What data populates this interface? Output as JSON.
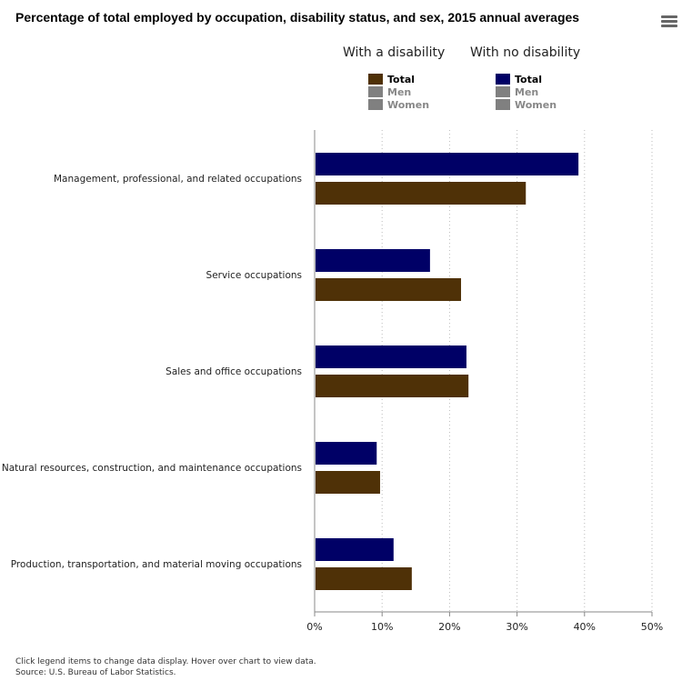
{
  "chart_data": {
    "type": "bar",
    "orientation": "horizontal",
    "title": "Percentage of total employed by occupation, disability status, and sex, 2015 annual averages",
    "categories": [
      "Management, professional, and related occupations",
      "Service occupations",
      "Sales and office occupations",
      "Natural resources, construction, and maintenance occupations",
      "Production, transportation, and material moving occupations"
    ],
    "series": [
      {
        "name": "With no disability - Total",
        "color": "#000066",
        "values": [
          39.1,
          17.1,
          22.5,
          9.2,
          11.7
        ]
      },
      {
        "name": "With a disability - Total",
        "color": "#4f3107",
        "values": [
          31.3,
          21.7,
          22.8,
          9.7,
          14.4
        ]
      }
    ],
    "xlim": [
      0,
      50
    ],
    "xticks": [
      "0%",
      "10%",
      "20%",
      "30%",
      "40%",
      "50%"
    ],
    "grid": true,
    "legend_position": "top"
  },
  "legend": {
    "groups": [
      {
        "title": "With a disability",
        "items": [
          {
            "label": "Total",
            "color": "#4f3107",
            "active": true
          },
          {
            "label": "Men",
            "color": "#808080",
            "active": false
          },
          {
            "label": "Women",
            "color": "#808080",
            "active": false
          }
        ]
      },
      {
        "title": "With no disability",
        "items": [
          {
            "label": "Total",
            "color": "#000066",
            "active": true
          },
          {
            "label": "Men",
            "color": "#808080",
            "active": false
          },
          {
            "label": "Women",
            "color": "#808080",
            "active": false
          }
        ]
      }
    ]
  },
  "menu_icon": "hamburger-menu-icon",
  "footer": {
    "line1": "Click legend items to change data display. Hover over chart to view data.",
    "line2": "Source: U.S. Bureau of Labor Statistics."
  }
}
